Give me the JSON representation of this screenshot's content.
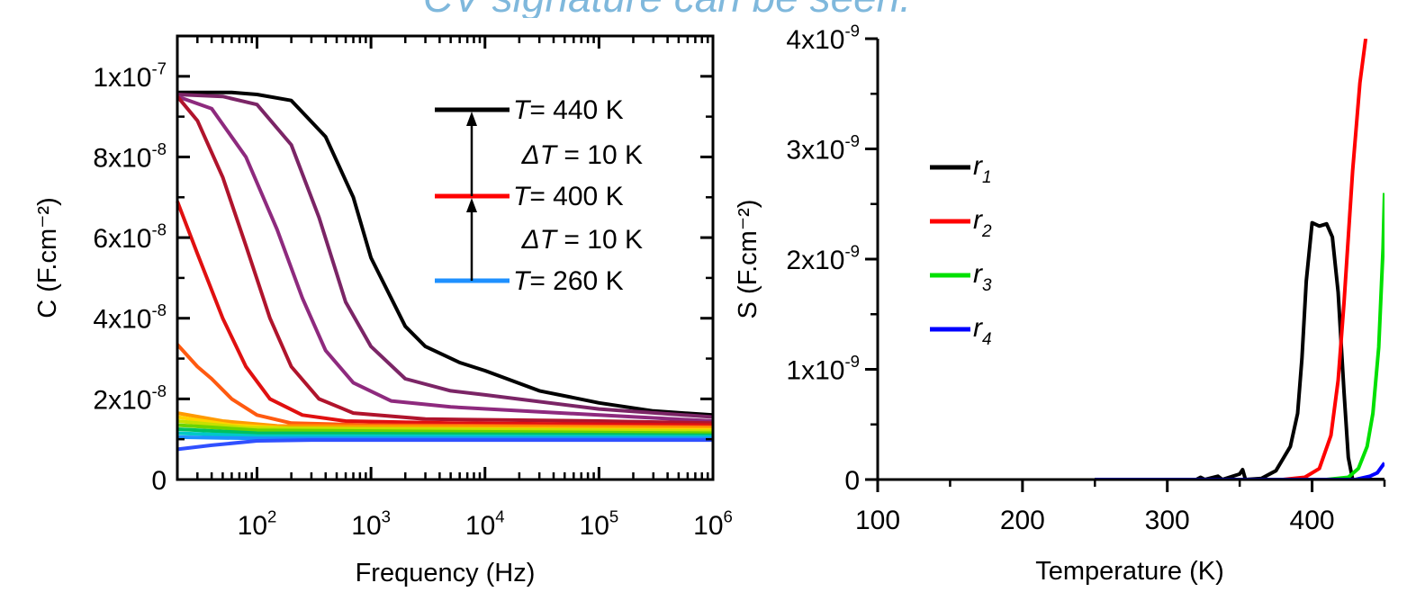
{
  "banner": {
    "text": "CV signature can be seen."
  },
  "chart_data": [
    {
      "type": "line",
      "xscale": "log",
      "xlabel": "Frequency (Hz)",
      "ylabel": "C (F.cm⁻²)",
      "xlim": [
        20,
        1000000
      ],
      "ylim": [
        0,
        1.1e-07
      ],
      "x_ticks": [
        {
          "value": 100,
          "base": "10",
          "exp": "2"
        },
        {
          "value": 1000,
          "base": "10",
          "exp": "3"
        },
        {
          "value": 10000,
          "base": "10",
          "exp": "4"
        },
        {
          "value": 100000,
          "base": "10",
          "exp": "5"
        },
        {
          "value": 1000000,
          "base": "10",
          "exp": "6"
        }
      ],
      "y_ticks": [
        {
          "value": 0,
          "base": "0",
          "exp": ""
        },
        {
          "value": 2e-08,
          "base": "2x10",
          "exp": "-8"
        },
        {
          "value": 4e-08,
          "base": "4x10",
          "exp": "-8"
        },
        {
          "value": 6e-08,
          "base": "6x10",
          "exp": "-8"
        },
        {
          "value": 8e-08,
          "base": "8x10",
          "exp": "-8"
        },
        {
          "value": 1e-07,
          "base": "1x10",
          "exp": "-7"
        }
      ],
      "legend": {
        "position": "top-right",
        "entries": [
          {
            "symbol": "T",
            "text": "= 440 K",
            "color": "#000000"
          },
          {
            "symbol": "ΔT",
            "text": " = 10 K",
            "color": null
          },
          {
            "symbol": "T",
            "text": "= 400 K",
            "color": "#ff0000"
          },
          {
            "symbol": "ΔT",
            "text": " = 10 K",
            "color": null
          },
          {
            "symbol": "T",
            "text": "= 260 K",
            "color": "#1e90ff"
          }
        ]
      },
      "series": [
        {
          "color": "#000000",
          "points": [
            [
              20,
              9.6e-08
            ],
            [
              60,
              9.6e-08
            ],
            [
              100,
              9.55e-08
            ],
            [
              200,
              9.4e-08
            ],
            [
              400,
              8.5e-08
            ],
            [
              700,
              7e-08
            ],
            [
              1000,
              5.5e-08
            ],
            [
              2000,
              3.8e-08
            ],
            [
              3000,
              3.3e-08
            ],
            [
              6000,
              2.9e-08
            ],
            [
              10000,
              2.7e-08
            ],
            [
              30000,
              2.2e-08
            ],
            [
              100000,
              1.9e-08
            ],
            [
              300000,
              1.7e-08
            ],
            [
              1000000,
              1.6e-08
            ]
          ]
        },
        {
          "color": "#7b2566",
          "points": [
            [
              20,
              9.55e-08
            ],
            [
              50,
              9.5e-08
            ],
            [
              100,
              9.3e-08
            ],
            [
              200,
              8.3e-08
            ],
            [
              350,
              6.5e-08
            ],
            [
              600,
              4.4e-08
            ],
            [
              1000,
              3.3e-08
            ],
            [
              2000,
              2.5e-08
            ],
            [
              5000,
              2.2e-08
            ],
            [
              10000,
              2.1e-08
            ],
            [
              100000,
              1.75e-08
            ],
            [
              1000000,
              1.55e-08
            ]
          ]
        },
        {
          "color": "#8e2a7e",
          "points": [
            [
              20,
              9.5e-08
            ],
            [
              40,
              9.2e-08
            ],
            [
              80,
              8e-08
            ],
            [
              150,
              6.2e-08
            ],
            [
              250,
              4.5e-08
            ],
            [
              400,
              3.2e-08
            ],
            [
              700,
              2.4e-08
            ],
            [
              1500,
              1.95e-08
            ],
            [
              5000,
              1.8e-08
            ],
            [
              100000,
              1.6e-08
            ],
            [
              1000000,
              1.45e-08
            ]
          ]
        },
        {
          "color": "#b0142c",
          "points": [
            [
              20,
              9.5e-08
            ],
            [
              30,
              8.9e-08
            ],
            [
              50,
              7.5e-08
            ],
            [
              80,
              5.8e-08
            ],
            [
              130,
              4e-08
            ],
            [
              200,
              2.8e-08
            ],
            [
              350,
              2e-08
            ],
            [
              700,
              1.65e-08
            ],
            [
              3000,
              1.5e-08
            ],
            [
              100000,
              1.45e-08
            ],
            [
              1000000,
              1.4e-08
            ]
          ]
        },
        {
          "color": "#e01010",
          "points": [
            [
              20,
              6.9e-08
            ],
            [
              30,
              5.6e-08
            ],
            [
              50,
              4e-08
            ],
            [
              80,
              2.8e-08
            ],
            [
              130,
              2e-08
            ],
            [
              250,
              1.6e-08
            ],
            [
              600,
              1.45e-08
            ],
            [
              5000,
              1.4e-08
            ],
            [
              1000000,
              1.35e-08
            ]
          ]
        },
        {
          "color": "#ff5a10",
          "points": [
            [
              20,
              3.35e-08
            ],
            [
              30,
              2.8e-08
            ],
            [
              40,
              2.5e-08
            ],
            [
              60,
              2e-08
            ],
            [
              100,
              1.6e-08
            ],
            [
              200,
              1.4e-08
            ],
            [
              1000,
              1.35e-08
            ],
            [
              1000000,
              1.3e-08
            ]
          ]
        },
        {
          "color": "#ff9a00",
          "points": [
            [
              20,
              1.65e-08
            ],
            [
              50,
              1.45e-08
            ],
            [
              150,
              1.33e-08
            ],
            [
              1000000,
              1.28e-08
            ]
          ]
        },
        {
          "color": "#ffd400",
          "points": [
            [
              20,
              1.55e-08
            ],
            [
              60,
              1.35e-08
            ],
            [
              200,
              1.27e-08
            ],
            [
              1000000,
              1.23e-08
            ]
          ]
        },
        {
          "color": "#c8e000",
          "points": [
            [
              20,
              1.45e-08
            ],
            [
              80,
              1.28e-08
            ],
            [
              1000000,
              1.2e-08
            ]
          ]
        },
        {
          "color": "#6cd400",
          "points": [
            [
              20,
              1.35e-08
            ],
            [
              100,
              1.22e-08
            ],
            [
              1000000,
              1.15e-08
            ]
          ]
        },
        {
          "color": "#00c060",
          "points": [
            [
              20,
              1.25e-08
            ],
            [
              100,
              1.15e-08
            ],
            [
              1000000,
              1.1e-08
            ]
          ]
        },
        {
          "color": "#00c8c8",
          "points": [
            [
              20,
              1.15e-08
            ],
            [
              100,
              1.08e-08
            ],
            [
              1000000,
              1.06e-08
            ]
          ]
        },
        {
          "color": "#1e90ff",
          "points": [
            [
              20,
              1.05e-08
            ],
            [
              100,
              1.02e-08
            ],
            [
              1000000,
              1.02e-08
            ]
          ]
        },
        {
          "color": "#3050ff",
          "points": [
            [
              20,
              7.5e-09
            ],
            [
              40,
              8.5e-09
            ],
            [
              100,
              9.6e-09
            ],
            [
              300,
              9.8e-09
            ],
            [
              1000000,
              9.8e-09
            ]
          ]
        }
      ]
    },
    {
      "type": "line",
      "xlabel": "Temperature (K)",
      "ylabel": "S (F.cm⁻²)",
      "xlim": [
        100,
        450
      ],
      "ylim": [
        0,
        4e-09
      ],
      "x_ticks": [
        {
          "value": 100,
          "base": "100",
          "exp": ""
        },
        {
          "value": 200,
          "base": "200",
          "exp": ""
        },
        {
          "value": 300,
          "base": "300",
          "exp": ""
        },
        {
          "value": 400,
          "base": "400",
          "exp": ""
        }
      ],
      "y_ticks": [
        {
          "value": 0,
          "base": "0",
          "exp": ""
        },
        {
          "value": 1e-09,
          "base": "1x10",
          "exp": "-9"
        },
        {
          "value": 2e-09,
          "base": "2x10",
          "exp": "-9"
        },
        {
          "value": 3e-09,
          "base": "3x10",
          "exp": "-9"
        },
        {
          "value": 4e-09,
          "base": "4x10",
          "exp": "-9"
        }
      ],
      "legend": {
        "position": "middle-left",
        "entries": [
          {
            "name": "r",
            "sub": "1",
            "color": "#000000"
          },
          {
            "name": "r",
            "sub": "2",
            "color": "#ff0000"
          },
          {
            "name": "r",
            "sub": "3",
            "color": "#00e000"
          },
          {
            "name": "r",
            "sub": "4",
            "color": "#0000ff"
          }
        ]
      },
      "series": [
        {
          "name": "r1",
          "color": "#000000",
          "points": [
            [
              250,
              0
            ],
            [
              320,
              0
            ],
            [
              323,
              2e-11
            ],
            [
              326,
              0
            ],
            [
              335,
              3e-11
            ],
            [
              338,
              0
            ],
            [
              350,
              5e-11
            ],
            [
              352,
              9e-11
            ],
            [
              354,
              0
            ],
            [
              365,
              1e-11
            ],
            [
              375,
              8e-11
            ],
            [
              385,
              3e-10
            ],
            [
              390,
              6e-10
            ],
            [
              393,
              1.1e-09
            ],
            [
              396,
              1.8e-09
            ],
            [
              400,
              2.33e-09
            ],
            [
              405,
              2.3e-09
            ],
            [
              410,
              2.32e-09
            ],
            [
              414,
              2.2e-09
            ],
            [
              418,
              1.7e-09
            ],
            [
              422,
              8e-10
            ],
            [
              425,
              2e-10
            ],
            [
              428,
              0
            ],
            [
              450,
              0
            ]
          ]
        },
        {
          "name": "r2",
          "color": "#ff0000",
          "points": [
            [
              250,
              0
            ],
            [
              380,
              0
            ],
            [
              395,
              2e-11
            ],
            [
              405,
              1e-10
            ],
            [
              413,
              4e-10
            ],
            [
              418,
              9e-10
            ],
            [
              422,
              1.6e-09
            ],
            [
              428,
              2.8e-09
            ],
            [
              433,
              3.6e-09
            ],
            [
              437,
              4e-09
            ]
          ]
        },
        {
          "name": "r3",
          "color": "#00e000",
          "points": [
            [
              250,
              0
            ],
            [
              410,
              0
            ],
            [
              425,
              2e-11
            ],
            [
              432,
              1e-10
            ],
            [
              438,
              3e-10
            ],
            [
              442,
              6e-10
            ],
            [
              446,
              1.2e-09
            ],
            [
              449,
              2.1e-09
            ],
            [
              450,
              2.6e-09
            ]
          ]
        },
        {
          "name": "r4",
          "color": "#0000ff",
          "points": [
            [
              250,
              0
            ],
            [
              430,
              0
            ],
            [
              440,
              3e-11
            ],
            [
              445,
              6e-11
            ],
            [
              450,
              1.5e-10
            ]
          ]
        }
      ]
    }
  ]
}
